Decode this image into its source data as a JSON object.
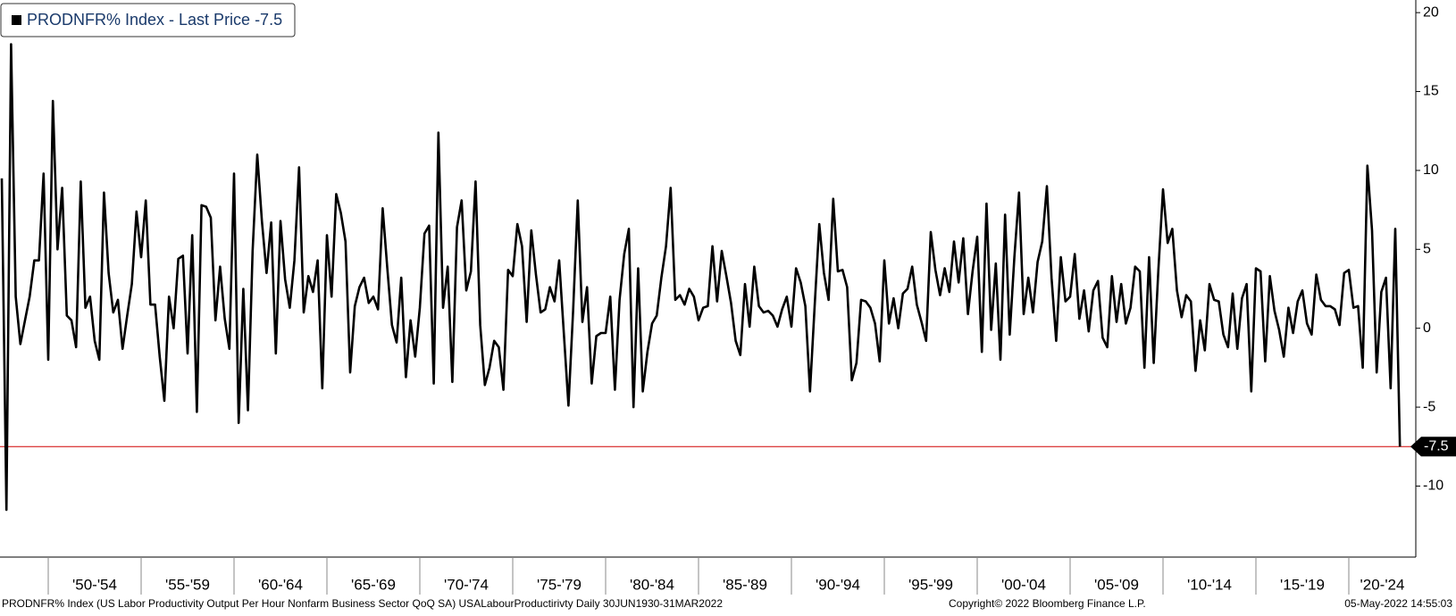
{
  "chart_data": {
    "type": "line",
    "series": [
      {
        "name": "PRODNFR% Index - Last Price -7.5",
        "color": "#000000",
        "values": [
          9.5,
          -11.5,
          18,
          2,
          -1,
          0.5,
          2,
          4.3,
          4.3,
          9.8,
          -2,
          14.4,
          5,
          8.9,
          0.8,
          0.5,
          -1.2,
          9.3,
          1.3,
          2,
          -0.8,
          -2,
          8.6,
          3.5,
          1,
          1.8,
          -1.3,
          0.8,
          2.8,
          7.4,
          4.5,
          8.1,
          1.5,
          1.5,
          -1.8,
          -4.6,
          2,
          0,
          4.4,
          4.6,
          -1.6,
          5.9,
          -5.3,
          7.8,
          7.7,
          7,
          0.5,
          3.9,
          0.6,
          -1.3,
          9.8,
          -6,
          2.5,
          -5.2,
          4.9,
          11,
          6.8,
          3.5,
          6.7,
          -1.6,
          6.8,
          3.1,
          1.3,
          4.3,
          10.2,
          1,
          3.3,
          2.3,
          4.3,
          -3.8,
          5.9,
          2,
          8.5,
          7.3,
          5.5,
          -2.8,
          1.4,
          2.6,
          3.2,
          1.6,
          2,
          1.2,
          7.6,
          3.8,
          0.2,
          -0.9,
          3.2,
          -3.1,
          0.5,
          -1.8,
          1.3,
          6,
          6.5,
          -3.5,
          12.4,
          1.3,
          3.9,
          -3.4,
          6.4,
          8.1,
          2.4,
          3.6,
          9.3,
          0.2,
          -3.6,
          -2.5,
          -0.8,
          -1.2,
          -3.9,
          3.7,
          3.3,
          6.6,
          5.2,
          0.4,
          6.2,
          3.4,
          1,
          1.2,
          2.6,
          1.7,
          4.3,
          -0.3,
          -4.9,
          1.1,
          8.1,
          0.4,
          2.6,
          -3.5,
          -0.5,
          -0.3,
          -0.3,
          2,
          -3.9,
          1.8,
          4.7,
          6.3,
          -5,
          3.8,
          -4,
          -1.5,
          0.3,
          0.8,
          3.2,
          5.2,
          8.9,
          1.8,
          2.1,
          1.5,
          2.5,
          2,
          0.5,
          1.3,
          1.4,
          5.2,
          1.7,
          4.9,
          3.3,
          1.6,
          -0.8,
          -1.7,
          2.8,
          0.1,
          3.9,
          1.4,
          1,
          1.1,
          0.8,
          0.1,
          1.2,
          2,
          0.1,
          3.8,
          2.9,
          1.4,
          -4,
          1.4,
          6.6,
          3.5,
          1.8,
          8.2,
          3.6,
          3.7,
          2.6,
          -3.3,
          -2.2,
          1.8,
          1.7,
          1.3,
          0.3,
          -2.1,
          4.3,
          0.3,
          1.9,
          0,
          2.2,
          2.5,
          3.9,
          1.5,
          0.4,
          -0.8,
          6.1,
          3.7,
          2.1,
          3.8,
          2.3,
          5.5,
          2.9,
          5.7,
          0.9,
          3.6,
          5.8,
          -1.5,
          7.9,
          -0.1,
          4.1,
          -2,
          7.2,
          -0.4,
          4.5,
          8.6,
          0.9,
          3.2,
          1,
          4.2,
          5.5,
          9,
          3.2,
          -0.8,
          4.5,
          1.7,
          2,
          4.7,
          0.6,
          2.4,
          -0.2,
          2.4,
          3,
          -0.6,
          -1.2,
          3.3,
          0.4,
          2.8,
          0.3,
          1.3,
          3.9,
          3.6,
          -2.5,
          4.5,
          -2.2,
          3.7,
          8.8,
          5.4,
          6.3,
          2.4,
          0.7,
          2.1,
          1.7,
          -2.7,
          0.5,
          -1.4,
          2.8,
          1.8,
          1.7,
          -0.4,
          -1.2,
          2.2,
          -1.3,
          1.9,
          2.8,
          -4,
          3.8,
          3.6,
          -2.1,
          3.3,
          1.1,
          -0.1,
          -1.8,
          1.3,
          -0.3,
          1.7,
          2.4,
          0.3,
          -0.4,
          3.4,
          1.8,
          1.4,
          1.4,
          1.2,
          0.2,
          3.5,
          3.7,
          1.3,
          1.4,
          -2.5,
          10.3,
          6.2,
          -2.8,
          2.3,
          3.2,
          -3.8,
          6.3,
          -7.5
        ]
      }
    ],
    "xtick_labels": [
      "'50-'54",
      "'55-'59",
      "'60-'64",
      "'65-'69",
      "'70-'74",
      "'75-'79",
      "'80-'84",
      "'85-'89",
      "'90-'94",
      "'95-'99",
      "'00-'04",
      "'05-'09",
      "'10-'14",
      "'15-'19",
      "'20-'24"
    ],
    "ylim": [
      -14.5,
      20.8
    ],
    "yticks": [
      20,
      15,
      10,
      5,
      0,
      -5,
      -10
    ],
    "last_line_color": "#d00000",
    "footer_left": "PRODNFR% Index (US Labor Productivity Output Per Hour Nonfarm Business Sector QoQ SA) USALabourProductirivty  Daily 30JUN1930-31MAR2022",
    "footer_center": "Copyright© 2022 Bloomberg Finance L.P.",
    "footer_right": "05-May-2022 14:55:03"
  }
}
